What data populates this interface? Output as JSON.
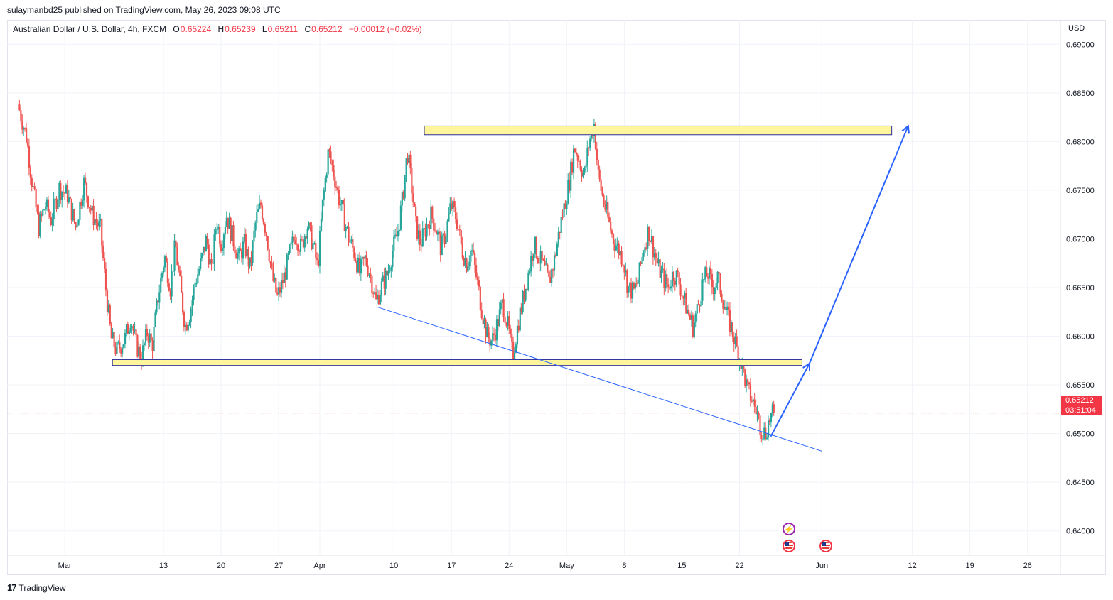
{
  "header": {
    "publisher_text": "sulaymanbd25 published on TradingView.com, May 26, 2023 09:08 UTC"
  },
  "legend": {
    "symbol": "Australian Dollar / U.S. Dollar, 4h, FXCM",
    "open_label": "O",
    "open": "0.65224",
    "high_label": "H",
    "high": "0.65239",
    "low_label": "L",
    "low": "0.65211",
    "close_label": "C",
    "close": "0.65212",
    "change": "−0.00012 (−0.02%)"
  },
  "axis": {
    "currency": "USD",
    "current_price": "0.65212",
    "countdown": "03:51:04"
  },
  "footer": {
    "brand": "TradingView",
    "logo_glyph": "17"
  },
  "icons": {
    "flash": "lightning-icon",
    "flag": "us-flag-icon"
  },
  "colors": {
    "up": "#26a69a",
    "down": "#ef5350",
    "zone_fill": "#fff59d",
    "zone_border": "#2a2e9e",
    "trendline": "#2962ff",
    "price_tag": "#f23645"
  },
  "chart_data": {
    "type": "candlestick",
    "symbol": "AUDUSD",
    "timeframe": "4h",
    "y_ticks": [
      "0.69000",
      "0.68500",
      "0.68000",
      "0.67500",
      "0.67000",
      "0.66500",
      "0.66000",
      "0.65500",
      "0.65000",
      "0.64500",
      "0.64000"
    ],
    "y_tick_values": [
      0.69,
      0.685,
      0.68,
      0.675,
      0.67,
      0.665,
      0.66,
      0.655,
      0.65,
      0.645,
      0.64
    ],
    "ylim": [
      0.6375,
      0.6925
    ],
    "x_ticks": [
      {
        "label": "Mar",
        "day": 0
      },
      {
        "label": "13",
        "day": 12
      },
      {
        "label": "20",
        "day": 19
      },
      {
        "label": "27",
        "day": 26
      },
      {
        "label": "Apr",
        "day": 31
      },
      {
        "label": "10",
        "day": 40
      },
      {
        "label": "17",
        "day": 47
      },
      {
        "label": "24",
        "day": 54
      },
      {
        "label": "May",
        "day": 61
      },
      {
        "label": "8",
        "day": 68
      },
      {
        "label": "15",
        "day": 75
      },
      {
        "label": "22",
        "day": 82
      },
      {
        "label": "Jun",
        "day": 92
      },
      {
        "label": "12",
        "day": 103
      },
      {
        "label": "19",
        "day": 110
      },
      {
        "label": "26",
        "day": 117
      }
    ],
    "xlim_days": [
      -7,
      121
    ],
    "price_path": [
      [
        -5.5,
        0.6838
      ],
      [
        -4.5,
        0.6805
      ],
      [
        -3.8,
        0.6758
      ],
      [
        -3.0,
        0.6712
      ],
      [
        -2.2,
        0.6735
      ],
      [
        -1.5,
        0.672
      ],
      [
        -0.5,
        0.6752
      ],
      [
        0.5,
        0.6745
      ],
      [
        1.5,
        0.6712
      ],
      [
        2.5,
        0.6758
      ],
      [
        3.5,
        0.6725
      ],
      [
        4.5,
        0.671
      ],
      [
        5.2,
        0.6645
      ],
      [
        5.8,
        0.6598
      ],
      [
        6.5,
        0.6585
      ],
      [
        7.5,
        0.6598
      ],
      [
        8.2,
        0.662
      ],
      [
        8.8,
        0.6592
      ],
      [
        9.5,
        0.6578
      ],
      [
        10.2,
        0.6605
      ],
      [
        10.8,
        0.659
      ],
      [
        11.5,
        0.664
      ],
      [
        12.3,
        0.6682
      ],
      [
        13.0,
        0.665
      ],
      [
        13.6,
        0.6695
      ],
      [
        14.2,
        0.665
      ],
      [
        14.8,
        0.661
      ],
      [
        15.4,
        0.6625
      ],
      [
        16.0,
        0.6655
      ],
      [
        16.6,
        0.6672
      ],
      [
        17.4,
        0.67
      ],
      [
        18.0,
        0.6665
      ],
      [
        18.6,
        0.672
      ],
      [
        19.2,
        0.6695
      ],
      [
        19.8,
        0.6725
      ],
      [
        20.6,
        0.67
      ],
      [
        21.3,
        0.668
      ],
      [
        22.0,
        0.6695
      ],
      [
        22.7,
        0.667
      ],
      [
        23.4,
        0.672
      ],
      [
        24.0,
        0.6735
      ],
      [
        24.7,
        0.6705
      ],
      [
        25.4,
        0.666
      ],
      [
        26.0,
        0.664
      ],
      [
        26.8,
        0.666
      ],
      [
        27.5,
        0.6685
      ],
      [
        28.2,
        0.6705
      ],
      [
        28.9,
        0.669
      ],
      [
        29.6,
        0.6715
      ],
      [
        30.3,
        0.6695
      ],
      [
        30.9,
        0.667
      ],
      [
        31.5,
        0.6735
      ],
      [
        32.2,
        0.679
      ],
      [
        32.8,
        0.677
      ],
      [
        33.4,
        0.6745
      ],
      [
        34.0,
        0.6725
      ],
      [
        34.7,
        0.67
      ],
      [
        35.4,
        0.6685
      ],
      [
        36.0,
        0.6665
      ],
      [
        36.7,
        0.668
      ],
      [
        37.4,
        0.666
      ],
      [
        38.0,
        0.6635
      ],
      [
        38.6,
        0.665
      ],
      [
        39.4,
        0.6665
      ],
      [
        40.0,
        0.6688
      ],
      [
        40.6,
        0.6705
      ],
      [
        41.2,
        0.674
      ],
      [
        41.8,
        0.679
      ],
      [
        42.3,
        0.6755
      ],
      [
        42.8,
        0.6715
      ],
      [
        43.4,
        0.6695
      ],
      [
        44.0,
        0.671
      ],
      [
        44.7,
        0.6725
      ],
      [
        45.3,
        0.671
      ],
      [
        45.9,
        0.669
      ],
      [
        46.5,
        0.6708
      ],
      [
        47.1,
        0.6735
      ],
      [
        47.8,
        0.672
      ],
      [
        48.4,
        0.669
      ],
      [
        49.0,
        0.6675
      ],
      [
        49.6,
        0.669
      ],
      [
        50.3,
        0.6655
      ],
      [
        50.9,
        0.6625
      ],
      [
        51.5,
        0.66
      ],
      [
        52.1,
        0.6595
      ],
      [
        52.8,
        0.6615
      ],
      [
        53.4,
        0.6635
      ],
      [
        54.0,
        0.661
      ],
      [
        54.6,
        0.658
      ],
      [
        55.3,
        0.6615
      ],
      [
        55.9,
        0.664
      ],
      [
        56.5,
        0.6665
      ],
      [
        57.2,
        0.6695
      ],
      [
        57.8,
        0.668
      ],
      [
        58.4,
        0.667
      ],
      [
        59.0,
        0.6655
      ],
      [
        59.7,
        0.668
      ],
      [
        60.3,
        0.671
      ],
      [
        60.9,
        0.6735
      ],
      [
        61.5,
        0.676
      ],
      [
        62.1,
        0.6795
      ],
      [
        62.7,
        0.678
      ],
      [
        63.3,
        0.6765
      ],
      [
        63.9,
        0.68
      ],
      [
        64.5,
        0.6818
      ],
      [
        65.0,
        0.6765
      ],
      [
        65.6,
        0.674
      ],
      [
        66.2,
        0.672
      ],
      [
        66.8,
        0.67
      ],
      [
        67.4,
        0.669
      ],
      [
        68.0,
        0.668
      ],
      [
        68.6,
        0.665
      ],
      [
        69.3,
        0.6645
      ],
      [
        69.9,
        0.666
      ],
      [
        70.5,
        0.669
      ],
      [
        71.1,
        0.671
      ],
      [
        71.7,
        0.669
      ],
      [
        72.3,
        0.667
      ],
      [
        72.9,
        0.666
      ],
      [
        73.5,
        0.665
      ],
      [
        74.1,
        0.6665
      ],
      [
        74.7,
        0.666
      ],
      [
        75.3,
        0.664
      ],
      [
        75.9,
        0.6625
      ],
      [
        76.5,
        0.661
      ],
      [
        77.1,
        0.663
      ],
      [
        77.7,
        0.6655
      ],
      [
        78.3,
        0.6665
      ],
      [
        78.9,
        0.665
      ],
      [
        79.5,
        0.666
      ],
      [
        80.1,
        0.664
      ],
      [
        80.7,
        0.662
      ],
      [
        81.3,
        0.6605
      ],
      [
        81.9,
        0.6585
      ],
      [
        82.5,
        0.657
      ],
      [
        83.1,
        0.6545
      ],
      [
        83.7,
        0.6535
      ],
      [
        84.3,
        0.652
      ],
      [
        84.8,
        0.6505
      ],
      [
        85.3,
        0.65
      ],
      [
        85.8,
        0.6515
      ],
      [
        86.3,
        0.6521
      ]
    ],
    "zones": [
      {
        "name": "resistance-zone",
        "y_low": 0.6807,
        "y_high": 0.6816,
        "x_start_day": 43.7,
        "x_end_day": 100.5
      },
      {
        "name": "support-zone",
        "y_low": 0.657,
        "y_high": 0.6576,
        "x_start_day": 5.8,
        "x_end_day": 89.6
      }
    ],
    "trendline": {
      "from": {
        "day": 38.0,
        "price": 0.663
      },
      "to": {
        "day": 92.0,
        "price": 0.6482
      }
    },
    "projection": [
      {
        "day": 85.8,
        "price": 0.6497
      },
      {
        "day": 90.5,
        "price": 0.6572
      },
      {
        "day": 102.5,
        "price": 0.6816
      }
    ],
    "last_price": 0.65212
  }
}
